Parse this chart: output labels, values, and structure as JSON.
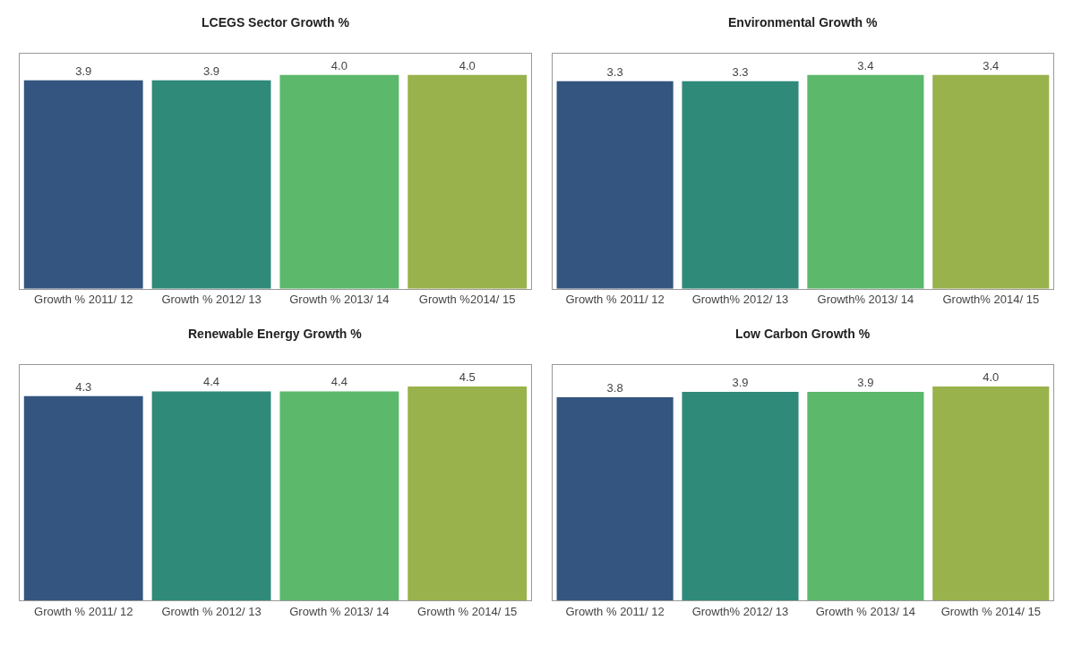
{
  "chart_data": [
    {
      "type": "bar",
      "title": "LCEGS Sector Growth %",
      "categories": [
        "Growth % 2011/ 12",
        "Growth % 2012/ 13",
        "Growth % 2013/ 14",
        "Growth %2014/ 15"
      ],
      "values": [
        3.9,
        3.9,
        4.0,
        4.0
      ],
      "value_labels": [
        "3.9",
        "3.9",
        "4.0",
        "4.0"
      ],
      "colors": [
        "#34557f",
        "#2f8a7a",
        "#5cb86a",
        "#99b24c"
      ]
    },
    {
      "type": "bar",
      "title": "Environmental Growth %",
      "categories": [
        "Growth % 2011/ 12",
        "Growth% 2012/ 13",
        "Growth% 2013/ 14",
        "Growth% 2014/ 15"
      ],
      "values": [
        3.3,
        3.3,
        3.4,
        3.4
      ],
      "value_labels": [
        "3.3",
        "3.3",
        "3.4",
        "3.4"
      ],
      "colors": [
        "#34557f",
        "#2f8a7a",
        "#5cb86a",
        "#99b24c"
      ]
    },
    {
      "type": "bar",
      "title": "Renewable Energy Growth %",
      "categories": [
        "Growth % 2011/ 12",
        "Growth % 2012/ 13",
        "Growth % 2013/ 14",
        "Growth % 2014/ 15"
      ],
      "values": [
        4.3,
        4.4,
        4.4,
        4.5
      ],
      "value_labels": [
        "4.3",
        "4.4",
        "4.4",
        "4.5"
      ],
      "colors": [
        "#34557f",
        "#2f8a7a",
        "#5cb86a",
        "#99b24c"
      ]
    },
    {
      "type": "bar",
      "title": "Low Carbon Growth %",
      "categories": [
        "Growth % 2011/ 12",
        "Growth% 2012/ 13",
        "Growth % 2013/ 14",
        "Growth % 2014/ 15"
      ],
      "values": [
        3.8,
        3.9,
        3.9,
        4.0
      ],
      "value_labels": [
        "3.8",
        "3.9",
        "3.9",
        "4.0"
      ],
      "colors": [
        "#34557f",
        "#2f8a7a",
        "#5cb86a",
        "#99b24c"
      ]
    }
  ]
}
